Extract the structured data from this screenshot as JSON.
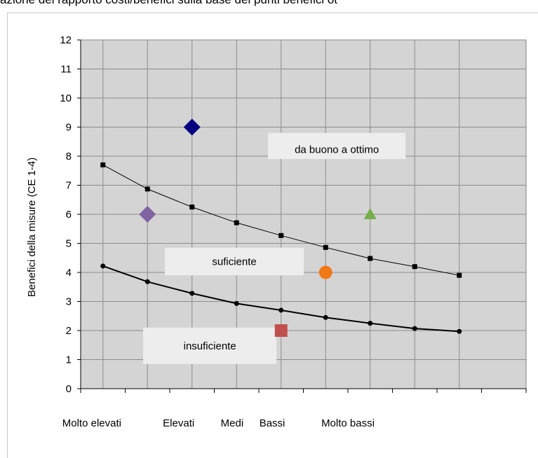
{
  "page": {
    "top_caption": "azione del rapporto costi/benefici sulla base dei punti benefici ot"
  },
  "chart_data": {
    "type": "scatter",
    "ylabel": "Benefici della misure (CE 1-4)",
    "ylim": [
      0,
      12
    ],
    "y_ticks": [
      "0",
      "1",
      "2",
      "3",
      "4",
      "5",
      "6",
      "7",
      "8",
      "9",
      "10",
      "11",
      "12"
    ],
    "grid": true,
    "category_labels": [
      "Molto elevati",
      "Elevati",
      "Medi",
      "Bassi",
      "Molto bassi"
    ],
    "upper_curve": {
      "x": [
        1,
        2,
        3,
        4,
        5,
        6,
        7,
        8,
        9
      ],
      "y": [
        7.7,
        6.87,
        6.25,
        5.71,
        5.27,
        4.86,
        4.48,
        4.2,
        3.9
      ]
    },
    "lower_curve": {
      "x": [
        1,
        2,
        3,
        4,
        5,
        6,
        7,
        8,
        9
      ],
      "y": [
        4.22,
        3.68,
        3.28,
        2.93,
        2.7,
        2.45,
        2.25,
        2.07,
        1.97
      ]
    },
    "markers": [
      {
        "shape": "diamond",
        "color": "#000080",
        "x": 3,
        "y": 9
      },
      {
        "shape": "diamond",
        "color": "#8064A2",
        "x": 2,
        "y": 6
      },
      {
        "shape": "triangle",
        "color": "#77AE4A",
        "x": 7,
        "y": 6
      },
      {
        "shape": "circle",
        "color": "#F07916",
        "x": 6,
        "y": 4
      },
      {
        "shape": "square",
        "color": "#C0504D",
        "x": 5,
        "y": 2
      }
    ],
    "zone_labels": {
      "high": "da buono a ottimo",
      "mid": "suficiente",
      "low": "insuficiente"
    },
    "colors": {
      "plot_bg": "#D4D4D4",
      "grid": "#8C8C8C",
      "label_box": "#EDEDED"
    }
  }
}
